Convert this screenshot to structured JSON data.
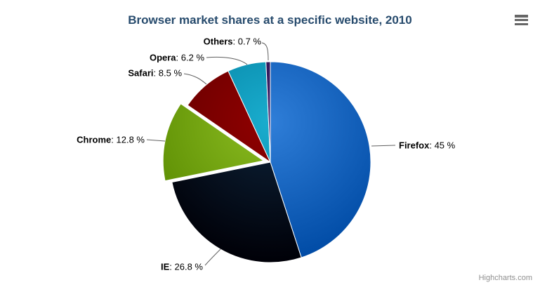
{
  "chart_data": {
    "type": "pie",
    "title": "Browser market shares at a specific website, 2010",
    "series": [
      {
        "name": "Firefox",
        "value": 45,
        "color": "#2f7ed8",
        "sliced": false
      },
      {
        "name": "IE",
        "value": 26.8,
        "color": "#0d233a",
        "sliced": false
      },
      {
        "name": "Chrome",
        "value": 12.8,
        "color": "#8bbc21",
        "sliced": true
      },
      {
        "name": "Safari",
        "value": 8.5,
        "color": "#910000",
        "sliced": false
      },
      {
        "name": "Opera",
        "value": 6.2,
        "color": "#1aadce",
        "sliced": false
      },
      {
        "name": "Others",
        "value": 0.7,
        "color": "#492970",
        "sliced": false
      }
    ],
    "label_separator": ": ",
    "value_suffix": " %",
    "start_angle": 0,
    "direction": "clockwise",
    "legend": false,
    "data_labels_visible": true
  },
  "credits": {
    "label": "Highcharts.com"
  },
  "toolbar": {
    "menu_icon": "hamburger-menu-icon"
  },
  "colors": {
    "title": "#274b6d",
    "label_text": "#000000",
    "connector": "#606060",
    "credits": "#909090",
    "menu_icon": "#666666",
    "background": "#ffffff",
    "slice_border": "#ffffff"
  }
}
